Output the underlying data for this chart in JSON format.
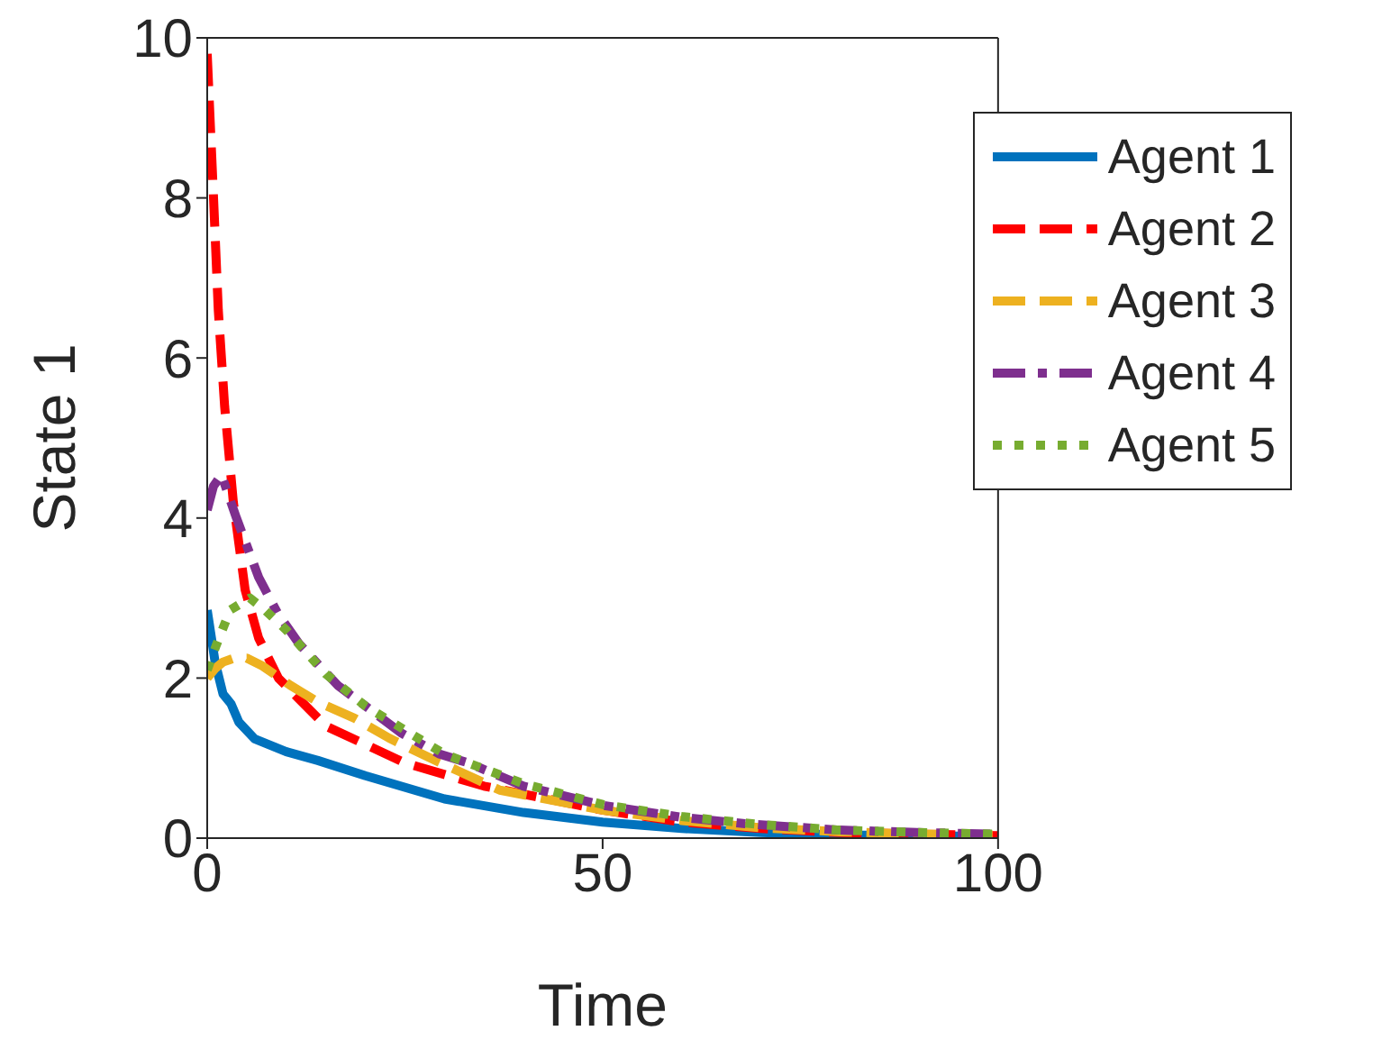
{
  "chart_data": {
    "type": "line",
    "xlabel": "Time",
    "ylabel": "State 1",
    "xlim": [
      0,
      100
    ],
    "ylim": [
      0,
      10
    ],
    "xticks": [
      0,
      50,
      100
    ],
    "yticks": [
      0,
      2,
      4,
      6,
      8,
      10
    ],
    "legend": "top right",
    "marker": "none",
    "series": [
      {
        "name": "Agent 1",
        "color": "#0072bd",
        "line_style": "solid",
        "x": [
          0,
          1,
          2,
          3,
          4,
          6,
          10,
          14,
          20,
          30,
          40,
          50,
          60,
          70,
          80,
          90,
          100
        ],
        "values": [
          2.85,
          2.2,
          1.8,
          1.68,
          1.45,
          1.24,
          1.08,
          0.97,
          0.78,
          0.49,
          0.32,
          0.2,
          0.12,
          0.07,
          0.04,
          0.03,
          0.02
        ]
      },
      {
        "name": "Agent 2",
        "color": "#ff0000",
        "line_style": "dashed",
        "x": [
          0,
          0.8,
          1.4,
          2.2,
          3.3,
          4.8,
          6.5,
          9,
          15,
          25,
          35,
          50,
          60,
          70,
          80,
          90,
          100
        ],
        "values": [
          9.8,
          8.0,
          6.6,
          5.4,
          4.2,
          3.1,
          2.5,
          2.0,
          1.4,
          0.94,
          0.65,
          0.35,
          0.2,
          0.12,
          0.07,
          0.05,
          0.03
        ]
      },
      {
        "name": "Agent 3",
        "color": "#edb120",
        "line_style": "dashed",
        "x": [
          0,
          1,
          2,
          3.4,
          5,
          7,
          10.5,
          14,
          18.6,
          23,
          28,
          37,
          50,
          60,
          70,
          80,
          90,
          100
        ],
        "values": [
          2.0,
          2.12,
          2.2,
          2.25,
          2.25,
          2.15,
          1.91,
          1.7,
          1.5,
          1.25,
          1.01,
          0.6,
          0.35,
          0.22,
          0.13,
          0.08,
          0.05,
          0.04
        ]
      },
      {
        "name": "Agent 4",
        "color": "#7e2f8e",
        "line_style": "dashdot",
        "x": [
          0,
          0.8,
          1.8,
          3.7,
          6.5,
          8.9,
          11.6,
          16.5,
          24.6,
          29.4,
          33,
          40,
          50,
          60,
          68,
          80,
          90,
          100
        ],
        "values": [
          4.1,
          4.4,
          4.54,
          4.0,
          3.26,
          2.81,
          2.43,
          1.91,
          1.31,
          1.05,
          0.94,
          0.65,
          0.41,
          0.26,
          0.18,
          0.1,
          0.07,
          0.05
        ]
      },
      {
        "name": "Agent 5",
        "color": "#77ac30",
        "line_style": "dotted",
        "x": [
          0,
          1.1,
          2.9,
          5.4,
          7.3,
          10,
          15,
          20,
          30,
          40,
          50,
          60,
          70,
          80,
          90,
          100
        ],
        "values": [
          2.1,
          2.4,
          2.85,
          3.0,
          2.85,
          2.6,
          2.05,
          1.65,
          1.05,
          0.68,
          0.42,
          0.27,
          0.17,
          0.1,
          0.07,
          0.05
        ]
      }
    ]
  }
}
